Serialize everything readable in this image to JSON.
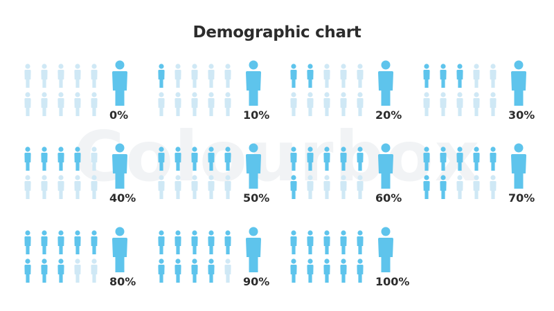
{
  "title": "Demographic chart",
  "watermark": "Colourbox",
  "colors": {
    "filled": "#5ec4ec",
    "empty": "#cfe8f5",
    "text": "#2c2c2c"
  },
  "chart_data": {
    "type": "pictogram",
    "title": "Demographic chart",
    "icons_per_chart": 10,
    "items": [
      {
        "label": "0%",
        "value": 0
      },
      {
        "label": "10%",
        "value": 10
      },
      {
        "label": "20%",
        "value": 20
      },
      {
        "label": "30%",
        "value": 30
      },
      {
        "label": "40%",
        "value": 40
      },
      {
        "label": "50%",
        "value": 50
      },
      {
        "label": "60%",
        "value": 60
      },
      {
        "label": "70%",
        "value": 70
      },
      {
        "label": "80%",
        "value": 80
      },
      {
        "label": "90%",
        "value": 90
      },
      {
        "label": "100%",
        "value": 100
      }
    ]
  }
}
